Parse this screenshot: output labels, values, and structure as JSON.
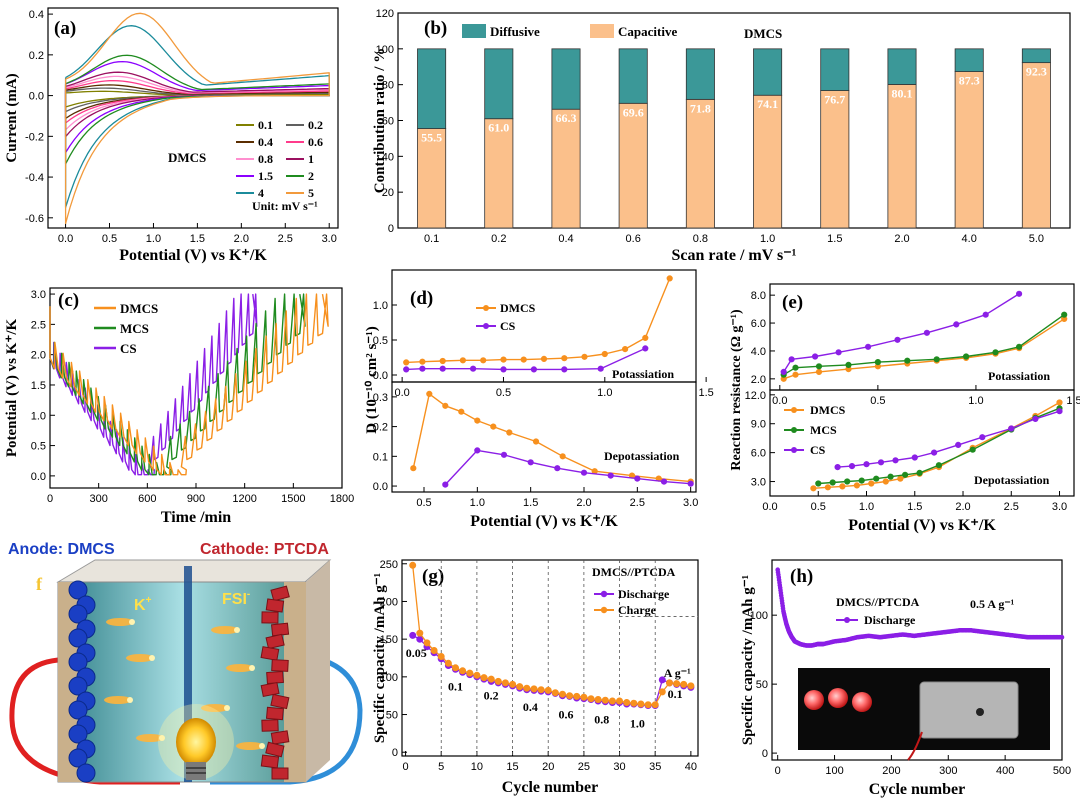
{
  "panel_labels": {
    "a": "(a)",
    "b": "(b)",
    "c": "(c)",
    "d": "(d)",
    "e": "(e)",
    "f": "f",
    "g": "(g)",
    "h": "(h)"
  },
  "illustration": {
    "anode_label": "Anode: DMCS",
    "cathode_label": "Cathode: PTCDA",
    "cation": "K",
    "cation_sup": "+",
    "anion": "FSI",
    "anion_sup": "-",
    "anode_color": "#1a3fc4",
    "cathode_color": "#c0262e"
  },
  "chart_data": [
    {
      "id": "a",
      "type": "line",
      "title": "",
      "annotation": "DMCS",
      "xlabel": "Potential (V) vs K⁺/K",
      "ylabel": "Current (mA)",
      "xlim": [
        -0.2,
        3.1
      ],
      "ylim": [
        -0.65,
        0.43
      ],
      "xticks": [
        0.0,
        0.5,
        1.0,
        1.5,
        2.0,
        2.5,
        3.0
      ],
      "yticks": [
        -0.6,
        -0.4,
        -0.2,
        0.0,
        0.2,
        0.4
      ],
      "unit_note": "Unit: mV s⁻¹",
      "series": [
        {
          "name": "0.1",
          "color": "#808000",
          "anodic_peak": [
            0.42,
            0.02
          ],
          "cathodic_min": [
            0.0,
            -0.05
          ]
        },
        {
          "name": "0.2",
          "color": "#606060",
          "anodic_peak": [
            0.45,
            0.035
          ],
          "cathodic_min": [
            0.0,
            -0.07
          ]
        },
        {
          "name": "0.4",
          "color": "#5a2d00",
          "anodic_peak": [
            0.5,
            0.05
          ],
          "cathodic_min": [
            0.0,
            -0.1
          ]
        },
        {
          "name": "0.6",
          "color": "#ff3b8b",
          "anodic_peak": [
            0.55,
            0.07
          ],
          "cathodic_min": [
            0.0,
            -0.12
          ]
        },
        {
          "name": "0.8",
          "color": "#ff8fcf",
          "anodic_peak": [
            0.58,
            0.09
          ],
          "cathodic_min": [
            0.0,
            -0.15
          ]
        },
        {
          "name": "1",
          "color": "#9b1060",
          "anodic_peak": [
            0.6,
            0.11
          ],
          "cathodic_min": [
            0.0,
            -0.18
          ]
        },
        {
          "name": "1.5",
          "color": "#8b00ff",
          "anodic_peak": [
            0.65,
            0.16
          ],
          "cathodic_min": [
            0.0,
            -0.25
          ]
        },
        {
          "name": "2",
          "color": "#1f8b1f",
          "anodic_peak": [
            0.7,
            0.19
          ],
          "cathodic_min": [
            0.0,
            -0.3
          ]
        },
        {
          "name": "4",
          "color": "#1b8b9b",
          "anodic_peak": [
            0.75,
            0.33
          ],
          "cathodic_min": [
            0.0,
            -0.49
          ]
        },
        {
          "name": "5",
          "color": "#f29a3c",
          "anodic_peak": [
            0.85,
            0.39
          ],
          "cathodic_min": [
            0.0,
            -0.56
          ]
        }
      ]
    },
    {
      "id": "b",
      "type": "bar",
      "title": "",
      "annotation": "DMCS",
      "xlabel": "Scan rate / mV s⁻¹",
      "ylabel": "Contribution ratio / %",
      "ylim": [
        0,
        120
      ],
      "yticks": [
        0,
        20,
        40,
        60,
        80,
        100,
        120
      ],
      "categories": [
        "0.1",
        "0.2",
        "0.4",
        "0.6",
        "0.8",
        "1.0",
        "1.5",
        "2.0",
        "4.0",
        "5.0"
      ],
      "series": [
        {
          "name": "Capacitive",
          "color": "#fbc08b",
          "values": [
            55.5,
            61.0,
            66.3,
            69.6,
            71.8,
            74.1,
            76.7,
            80.1,
            87.3,
            92.3
          ]
        },
        {
          "name": "Diffusive",
          "color": "#3b9898",
          "values": [
            44.5,
            39.0,
            33.7,
            30.4,
            28.2,
            25.9,
            23.3,
            19.9,
            12.7,
            7.7
          ]
        }
      ],
      "value_labels": [
        "55.5",
        "61.0",
        "66.3",
        "69.6",
        "71.8",
        "74.1",
        "76.7",
        "80.1",
        "87.3",
        "92.3"
      ]
    },
    {
      "id": "c",
      "type": "line",
      "title": "",
      "xlabel": "Time /min",
      "ylabel": "Potential (V) vs K⁺/K",
      "xlim": [
        0,
        1800
      ],
      "ylim": [
        -0.2,
        3.1
      ],
      "xticks": [
        0,
        300,
        600,
        900,
        1200,
        1500,
        1800
      ],
      "yticks": [
        0.0,
        0.5,
        1.0,
        1.5,
        2.0,
        2.5,
        3.0
      ],
      "series": [
        {
          "name": "DMCS",
          "color": "#f7901e",
          "end_time": 1680,
          "min_time": 810
        },
        {
          "name": "MCS",
          "color": "#1f8b1f",
          "end_time": 1540,
          "min_time": 720
        },
        {
          "name": "CS",
          "color": "#8b1fe6",
          "end_time": 1250,
          "min_time": 620
        }
      ]
    },
    {
      "id": "d_top",
      "type": "line",
      "title": "",
      "annotation": "Potassiation",
      "xlabel": "",
      "ylabel": "D (10⁻¹⁰ cm² s⁻¹)",
      "xlim": [
        -0.05,
        1.45
      ],
      "ylim": [
        -0.1,
        1.5
      ],
      "xticks": [
        0.0,
        0.5,
        1.0,
        1.5
      ],
      "yticks": [
        0.0,
        0.5,
        1.0
      ],
      "series": [
        {
          "name": "DMCS",
          "color": "#f7901e",
          "x": [
            0.02,
            0.1,
            0.2,
            0.3,
            0.4,
            0.5,
            0.6,
            0.7,
            0.8,
            0.9,
            1.0,
            1.1,
            1.2,
            1.32
          ],
          "y": [
            0.18,
            0.19,
            0.2,
            0.21,
            0.21,
            0.22,
            0.22,
            0.23,
            0.24,
            0.26,
            0.3,
            0.37,
            0.53,
            1.38
          ]
        },
        {
          "name": "CS",
          "color": "#8b1fe6",
          "x": [
            0.02,
            0.1,
            0.2,
            0.35,
            0.5,
            0.65,
            0.8,
            0.98,
            1.2
          ],
          "y": [
            0.08,
            0.09,
            0.09,
            0.09,
            0.08,
            0.08,
            0.08,
            0.09,
            0.38
          ]
        }
      ]
    },
    {
      "id": "d_bottom",
      "type": "line",
      "title": "",
      "annotation": "Depotassiation",
      "xlabel": "Potential (V) vs K⁺/K",
      "ylabel": "",
      "xlim": [
        0.2,
        3.05
      ],
      "ylim": [
        -0.02,
        0.35
      ],
      "xticks": [
        0.5,
        1.0,
        1.5,
        2.0,
        2.5,
        3.0
      ],
      "yticks": [
        0.0,
        0.1,
        0.2,
        0.3
      ],
      "series": [
        {
          "name": "DMCS",
          "color": "#f7901e",
          "x": [
            0.4,
            0.55,
            0.7,
            0.85,
            1.0,
            1.15,
            1.3,
            1.55,
            1.8,
            2.1,
            2.45,
            2.7,
            3.0
          ],
          "y": [
            0.06,
            0.31,
            0.27,
            0.25,
            0.22,
            0.2,
            0.18,
            0.15,
            0.1,
            0.05,
            0.035,
            0.025,
            0.015
          ]
        },
        {
          "name": "CS",
          "color": "#8b1fe6",
          "x": [
            0.7,
            1.0,
            1.25,
            1.5,
            1.75,
            2.0,
            2.25,
            2.5,
            2.75,
            3.0
          ],
          "y": [
            0.005,
            0.12,
            0.105,
            0.08,
            0.06,
            0.045,
            0.035,
            0.025,
            0.015,
            0.008
          ]
        }
      ]
    },
    {
      "id": "e_top",
      "type": "line",
      "title": "",
      "annotation": "Potassiation",
      "xlabel": "",
      "ylabel": "Reaction resistance (Ω g⁻¹)",
      "xlim": [
        -0.05,
        1.5
      ],
      "ylim": [
        1.2,
        8.8
      ],
      "xticks": [
        0.0,
        0.5,
        1.0,
        1.5
      ],
      "yticks": [
        2.0,
        4.0,
        6.0,
        8.0
      ],
      "series": [
        {
          "name": "DMCS",
          "color": "#f7901e",
          "x": [
            0.02,
            0.08,
            0.2,
            0.35,
            0.5,
            0.65,
            0.8,
            0.95,
            1.1,
            1.22,
            1.45
          ],
          "y": [
            2.0,
            2.3,
            2.5,
            2.7,
            2.9,
            3.1,
            3.3,
            3.5,
            3.8,
            4.2,
            6.3
          ]
        },
        {
          "name": "MCS",
          "color": "#1f8b1f",
          "x": [
            0.02,
            0.08,
            0.2,
            0.35,
            0.5,
            0.65,
            0.8,
            0.95,
            1.1,
            1.22,
            1.45
          ],
          "y": [
            2.3,
            2.8,
            2.9,
            3.0,
            3.2,
            3.3,
            3.4,
            3.6,
            3.9,
            4.3,
            6.6
          ]
        },
        {
          "name": "CS",
          "color": "#8b1fe6",
          "x": [
            0.02,
            0.06,
            0.18,
            0.3,
            0.45,
            0.6,
            0.75,
            0.9,
            1.05,
            1.22
          ],
          "y": [
            2.5,
            3.4,
            3.6,
            3.9,
            4.3,
            4.8,
            5.3,
            5.9,
            6.6,
            8.1
          ]
        }
      ]
    },
    {
      "id": "e_bottom",
      "type": "line",
      "title": "",
      "annotation": "Depotassiation",
      "xlabel": "Potential (V) vs K⁺/K",
      "ylabel": "",
      "xlim": [
        0.0,
        3.15
      ],
      "ylim": [
        1.5,
        12.5
      ],
      "xticks": [
        0.0,
        0.5,
        1.0,
        1.5,
        2.0,
        2.5,
        3.0
      ],
      "yticks": [
        3.0,
        6.0,
        9.0,
        12.0
      ],
      "series": [
        {
          "name": "DMCS",
          "color": "#f7901e",
          "x": [
            0.45,
            0.6,
            0.75,
            0.9,
            1.05,
            1.2,
            1.35,
            1.55,
            1.75,
            2.1,
            2.5,
            2.75,
            3.0
          ],
          "y": [
            2.3,
            2.4,
            2.5,
            2.6,
            2.8,
            3.0,
            3.3,
            3.8,
            4.5,
            6.5,
            8.5,
            9.8,
            11.2
          ]
        },
        {
          "name": "MCS",
          "color": "#1f8b1f",
          "x": [
            0.5,
            0.65,
            0.8,
            0.95,
            1.1,
            1.25,
            1.4,
            1.55,
            1.75,
            2.1,
            2.5,
            2.75,
            3.0
          ],
          "y": [
            2.8,
            2.9,
            3.0,
            3.1,
            3.3,
            3.5,
            3.7,
            3.9,
            4.7,
            6.3,
            8.4,
            9.6,
            10.6
          ]
        },
        {
          "name": "CS",
          "color": "#8b1fe6",
          "x": [
            0.7,
            0.85,
            1.0,
            1.15,
            1.3,
            1.5,
            1.7,
            1.95,
            2.2,
            2.5,
            2.75,
            3.0
          ],
          "y": [
            4.5,
            4.6,
            4.8,
            5.0,
            5.2,
            5.5,
            6.0,
            6.8,
            7.6,
            8.5,
            9.5,
            10.3
          ]
        }
      ]
    },
    {
      "id": "g",
      "type": "scatter",
      "title": "",
      "annotation": "DMCS//PTCDA",
      "xlabel": "Cycle number",
      "ylabel": "Specific capacity /mAh g⁻¹",
      "xlim": [
        -0.5,
        41
      ],
      "ylim": [
        -5,
        255
      ],
      "xticks": [
        0,
        5,
        10,
        15,
        20,
        25,
        30,
        35,
        40
      ],
      "yticks": [
        0,
        50,
        100,
        150,
        200,
        250
      ],
      "rate_labels": [
        {
          "text": "0.05",
          "x": 1.5,
          "y": 126
        },
        {
          "text": "0.1",
          "x": 7.0,
          "y": 82
        },
        {
          "text": "0.2",
          "x": 12.0,
          "y": 70
        },
        {
          "text": "0.4",
          "x": 17.5,
          "y": 55
        },
        {
          "text": "0.6",
          "x": 22.5,
          "y": 45
        },
        {
          "text": "0.8",
          "x": 27.5,
          "y": 38
        },
        {
          "text": "1.0",
          "x": 32.5,
          "y": 33
        },
        {
          "text": "0.1",
          "x": 37.8,
          "y": 72
        }
      ],
      "rate_unit": "A g⁻¹",
      "series": [
        {
          "name": "Discharge",
          "color": "#8b1fe6",
          "x": [
            1,
            2,
            3,
            4,
            5,
            6,
            7,
            8,
            9,
            10,
            11,
            12,
            13,
            14,
            15,
            16,
            17,
            18,
            19,
            20,
            21,
            22,
            23,
            24,
            25,
            26,
            27,
            28,
            29,
            30,
            31,
            32,
            33,
            34,
            35,
            36,
            37,
            38,
            39,
            40
          ],
          "y": [
            155,
            150,
            140,
            132,
            124,
            115,
            110,
            106,
            103,
            100,
            97,
            94,
            92,
            90,
            88,
            85,
            83,
            82,
            81,
            80,
            78,
            75,
            74,
            72,
            71,
            70,
            68,
            67,
            66,
            66,
            64,
            64,
            63,
            62,
            62,
            96,
            92,
            90,
            88,
            86
          ]
        },
        {
          "name": "Charge",
          "color": "#f7901e",
          "x": [
            1,
            2,
            3,
            4,
            5,
            6,
            7,
            8,
            9,
            10,
            11,
            12,
            13,
            14,
            15,
            16,
            17,
            18,
            19,
            20,
            21,
            22,
            23,
            24,
            25,
            26,
            27,
            28,
            29,
            30,
            31,
            32,
            33,
            34,
            35,
            36,
            37,
            38,
            39,
            40
          ],
          "y": [
            248,
            158,
            145,
            135,
            127,
            118,
            112,
            108,
            105,
            102,
            99,
            97,
            94,
            92,
            90,
            87,
            85,
            84,
            83,
            82,
            79,
            77,
            75,
            74,
            73,
            71,
            70,
            69,
            68,
            68,
            66,
            65,
            64,
            63,
            63,
            80,
            92,
            91,
            90,
            88
          ]
        }
      ]
    },
    {
      "id": "h",
      "type": "line",
      "title": "",
      "annotation": "DMCS//PTCDA",
      "xlabel": "Cycle number",
      "ylabel": "Specific capacity /mAh g⁻¹",
      "current_note": "0.5 A g⁻¹",
      "xlim": [
        -10,
        500
      ],
      "ylim": [
        -5,
        140
      ],
      "xticks": [
        0,
        100,
        200,
        300,
        400,
        500
      ],
      "yticks": [
        0,
        50,
        100
      ],
      "series": [
        {
          "name": "Discharge",
          "color": "#8b1fe6",
          "x": [
            0,
            5,
            10,
            15,
            20,
            25,
            30,
            40,
            50,
            60,
            70,
            80,
            100,
            120,
            140,
            160,
            180,
            200,
            220,
            240,
            260,
            280,
            300,
            320,
            340,
            360,
            380,
            400,
            420,
            440,
            460,
            480,
            500
          ],
          "y": [
            133,
            118,
            103,
            94,
            88,
            84,
            81,
            79,
            78,
            78,
            79,
            79,
            81,
            82,
            84,
            85,
            84,
            85,
            86,
            85,
            86,
            87,
            88,
            89,
            89,
            88,
            87,
            86,
            85,
            84,
            84,
            84,
            84
          ]
        }
      ]
    }
  ]
}
